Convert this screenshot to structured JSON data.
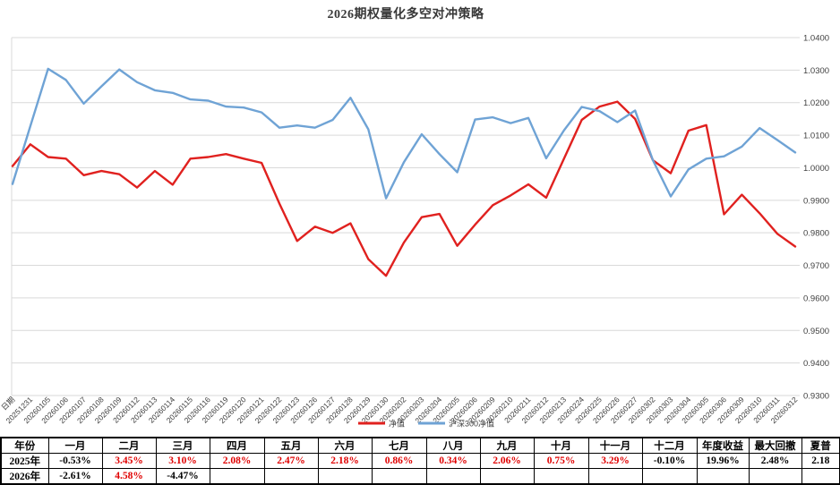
{
  "title": "2026期权量化多空对冲策略",
  "chart_data": {
    "type": "line",
    "categories": [
      "日期",
      "20251231",
      "20260105",
      "20260106",
      "20260107",
      "20260108",
      "20260109",
      "20260112",
      "20260113",
      "20260114",
      "20260115",
      "20260116",
      "20260119",
      "20260120",
      "20260121",
      "20260122",
      "20260123",
      "20260126",
      "20260127",
      "20260128",
      "20260129",
      "20260130",
      "20260202",
      "20260203",
      "20260204",
      "20260205",
      "20260206",
      "20260209",
      "20260210",
      "20260211",
      "20260212",
      "20260213",
      "20260224",
      "20260225",
      "20260226",
      "20260227",
      "20260302",
      "20260303",
      "20260304",
      "20260305",
      "20260306",
      "20260309",
      "20260310",
      "20260311",
      "20260312"
    ],
    "series": [
      {
        "key": "fund-nav",
        "name": "净值",
        "color": "#e0211f",
        "values": [
          1.0005,
          1.0072,
          1.0033,
          1.0028,
          0.9977,
          0.999,
          0.998,
          0.9939,
          0.999,
          0.9948,
          1.0028,
          1.0033,
          1.0042,
          1.0028,
          1.0015,
          0.989,
          0.9775,
          0.9819,
          0.98,
          0.9829,
          0.9719,
          0.9668,
          0.977,
          0.9848,
          0.9858,
          0.976,
          0.9825,
          0.9885,
          0.9915,
          0.9949,
          0.9908,
          1.0028,
          1.0147,
          1.0188,
          1.0203,
          1.015,
          1.0023,
          0.9983,
          1.0114,
          1.0131,
          0.9857,
          0.9917,
          0.986,
          0.9797,
          0.9758
        ]
      },
      {
        "key": "hs300-nav",
        "name": "沪深300净值",
        "color": "#6fa3d5",
        "values": [
          0.995,
          1.0128,
          1.0304,
          1.027,
          1.0197,
          1.025,
          1.0302,
          1.0263,
          1.0238,
          1.023,
          1.021,
          1.0206,
          1.0188,
          1.0185,
          1.017,
          1.0123,
          1.013,
          1.0123,
          1.0147,
          1.0215,
          1.0118,
          0.9906,
          1.0017,
          1.0103,
          1.0042,
          0.9986,
          1.0148,
          1.0155,
          1.0137,
          1.0153,
          1.0029,
          1.0115,
          1.0187,
          1.0174,
          1.014,
          1.0176,
          1.0023,
          0.9912,
          0.9995,
          1.0028,
          1.0035,
          1.0065,
          1.0122,
          1.0085,
          1.0047
        ]
      }
    ],
    "ylim": [
      0.93,
      1.04
    ],
    "ytick_step": 0.01,
    "ytick_labels": [
      "1.0400",
      "1.0300",
      "1.0200",
      "1.0100",
      "1.0000",
      "0.9900",
      "0.9800",
      "0.9700",
      "0.9600",
      "0.9500",
      "0.9400",
      "0.9300"
    ],
    "grid_color": "#d9d9d9",
    "axis_label_color": "#404040",
    "legend_position": "bottom-center",
    "x_label_rotation": 45
  },
  "table": {
    "header": [
      "年份",
      "一月",
      "二月",
      "三月",
      "四月",
      "五月",
      "六月",
      "七月",
      "八月",
      "九月",
      "十月",
      "十一月",
      "十二月",
      "年度收益",
      "最大回撤",
      "夏普"
    ],
    "rows": [
      {
        "label": "2025年",
        "cells": [
          "-0.53%",
          "3.45%",
          "3.10%",
          "2.08%",
          "2.47%",
          "2.18%",
          "0.86%",
          "0.34%",
          "2.06%",
          "0.75%",
          "3.29%",
          "-0.10%",
          "19.96%",
          "2.48%",
          "2.18"
        ],
        "colors": [
          "k",
          "r",
          "r",
          "r",
          "r",
          "r",
          "r",
          "r",
          "r",
          "r",
          "r",
          "k",
          "k",
          "k",
          "k"
        ]
      },
      {
        "label": "2026年",
        "cells": [
          "-2.61%",
          "4.58%",
          "-4.47%",
          "",
          "",
          "",
          "",
          "",
          "",
          "",
          "",
          "",
          "",
          "",
          ""
        ],
        "colors": [
          "k",
          "r",
          "k",
          "k",
          "k",
          "k",
          "k",
          "k",
          "k",
          "k",
          "k",
          "k",
          "k",
          "k",
          "k"
        ]
      }
    ],
    "positive_color": "#e00000",
    "negative_color": "#000000"
  }
}
